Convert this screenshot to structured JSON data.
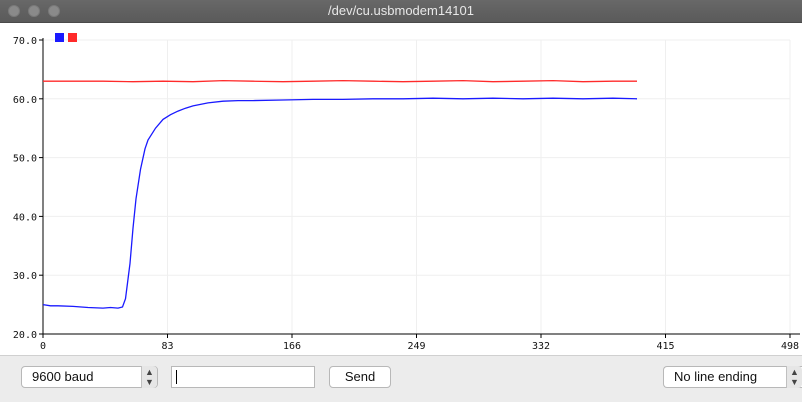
{
  "window": {
    "title": "/dev/cu.usbmodem14101"
  },
  "icons": {
    "close": "close-icon",
    "minimize": "minimize-icon",
    "zoom": "zoom-icon",
    "select_arrows": "updown-arrow-icon"
  },
  "controls": {
    "baud": "9600 baud",
    "input_value": "",
    "send": "Send",
    "line_ending": "No line ending"
  },
  "colors": {
    "series_blue": "#1a1aff",
    "series_red": "#ff2a2a",
    "grid": "#efefef"
  },
  "chart_data": {
    "type": "line",
    "xlabel": "",
    "ylabel": "",
    "xlim": [
      0,
      498
    ],
    "ylim": [
      20,
      70
    ],
    "x_ticks": [
      "0",
      "83",
      "166",
      "249",
      "332",
      "415",
      "498"
    ],
    "y_ticks": [
      "20.0",
      "30.0",
      "40.0",
      "50.0",
      "60.0",
      "70.0"
    ],
    "legend_position": "top-left",
    "grid": true,
    "series": [
      {
        "color": "#1a1aff",
        "x": [
          0,
          5,
          10,
          20,
          30,
          40,
          45,
          50,
          53,
          55,
          58,
          60,
          62,
          65,
          68,
          70,
          75,
          80,
          85,
          90,
          95,
          100,
          110,
          120,
          130,
          140,
          160,
          180,
          200,
          220,
          240,
          260,
          280,
          300,
          320,
          340,
          360,
          380,
          396
        ],
        "values": [
          25.0,
          24.8,
          24.8,
          24.7,
          24.5,
          24.4,
          24.5,
          24.4,
          24.6,
          26.0,
          32.0,
          38.0,
          43.0,
          48.0,
          51.5,
          53.0,
          55.0,
          56.5,
          57.3,
          57.9,
          58.4,
          58.8,
          59.3,
          59.6,
          59.7,
          59.7,
          59.8,
          59.9,
          59.9,
          60.0,
          60.0,
          60.1,
          60.0,
          60.1,
          60.0,
          60.1,
          60.0,
          60.1,
          60.0
        ]
      },
      {
        "color": "#ff2a2a",
        "x": [
          0,
          40,
          60,
          80,
          100,
          120,
          140,
          160,
          180,
          200,
          220,
          240,
          260,
          280,
          300,
          320,
          340,
          360,
          380,
          396
        ],
        "values": [
          63.0,
          63.0,
          62.9,
          63.0,
          62.9,
          63.1,
          63.0,
          62.9,
          63.0,
          63.1,
          63.0,
          62.9,
          63.0,
          63.1,
          62.9,
          63.0,
          63.1,
          62.9,
          63.0,
          63.0
        ]
      }
    ]
  }
}
